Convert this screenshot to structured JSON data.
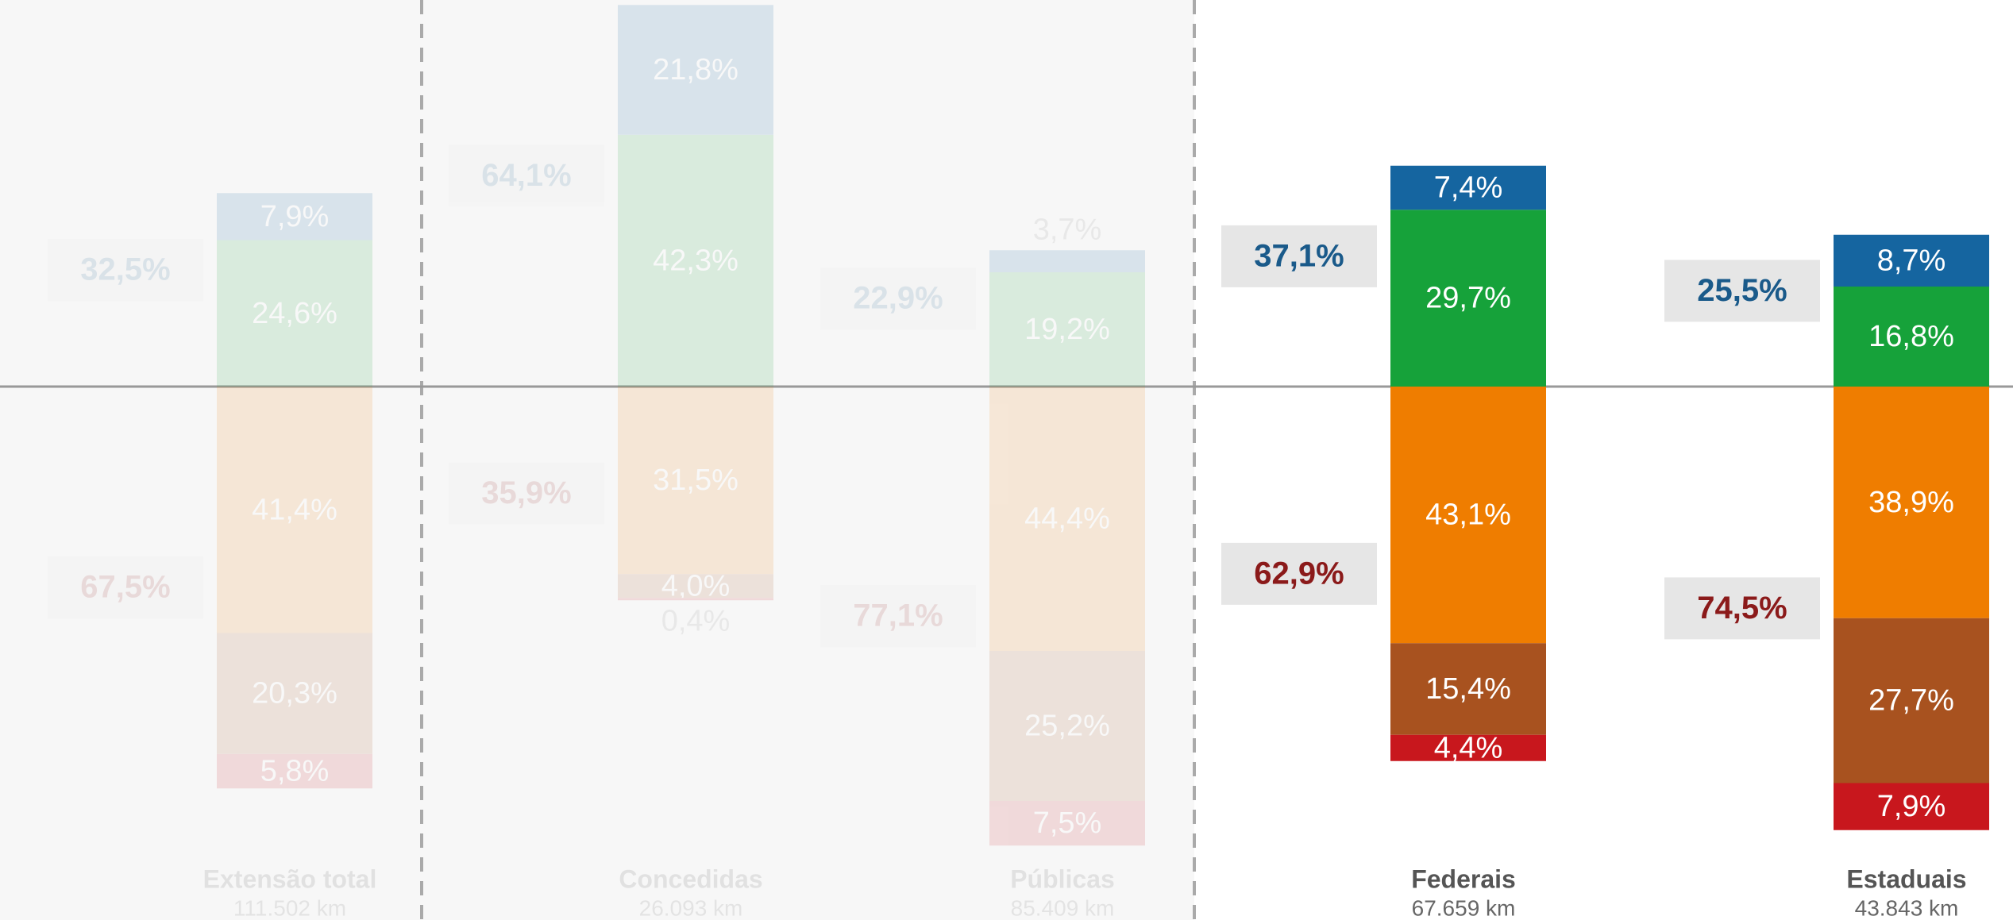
{
  "chart_data": {
    "type": "diverging_stacked_bar",
    "categories": [
      "Extensão total",
      "Concedidas",
      "Públicas",
      "Federais",
      "Estaduais"
    ],
    "category_sublabels": [
      "111.502 km",
      "26.093 km",
      "85.409 km",
      "67.659 km",
      "43.843 km"
    ],
    "faded": [
      true,
      true,
      true,
      false,
      false
    ],
    "series": [
      {
        "color": "#16a23a",
        "direction": "up",
        "values": [
          24.6,
          42.3,
          19.2,
          29.7,
          16.8
        ],
        "value_labels": [
          "24,6%",
          "42,3%",
          "19,2%",
          "29,7%",
          "16,8%"
        ]
      },
      {
        "color": "#1565a0",
        "direction": "up",
        "values": [
          7.9,
          21.8,
          3.7,
          7.4,
          8.7
        ],
        "value_labels": [
          "7,9%",
          "21,8%",
          "3,7%",
          "7,4%",
          "8,7%"
        ]
      },
      {
        "color": "#ef7d00",
        "direction": "down",
        "values": [
          41.4,
          31.5,
          44.4,
          43.1,
          38.9
        ],
        "value_labels": [
          "41,4%",
          "31,5%",
          "44,4%",
          "43,1%",
          "38,9%"
        ]
      },
      {
        "color": "#a8521f",
        "direction": "down",
        "values": [
          20.3,
          4.0,
          25.2,
          15.4,
          27.7
        ],
        "value_labels": [
          "20,3%",
          "4,0%",
          "25,2%",
          "15,4%",
          "27,7%"
        ]
      },
      {
        "color": "#c8171d",
        "direction": "down",
        "values": [
          5.8,
          0.4,
          7.5,
          4.4,
          7.9
        ],
        "value_labels": [
          "5,8%",
          "0,4%",
          "7,5%",
          "4,4%",
          "7,9%"
        ]
      }
    ],
    "totals_up": {
      "color": "#1a5a8a",
      "values": [
        32.5,
        64.1,
        22.9,
        37.1,
        25.5
      ],
      "value_labels": [
        "32,5%",
        "64,1%",
        "22,9%",
        "37,1%",
        "25,5%"
      ]
    },
    "totals_down": {
      "color": "#8b1a1a",
      "values": [
        67.5,
        35.9,
        77.1,
        62.9,
        74.5
      ],
      "value_labels": [
        "67,5%",
        "35,9%",
        "77,1%",
        "62,9%",
        "74,5%"
      ]
    }
  }
}
